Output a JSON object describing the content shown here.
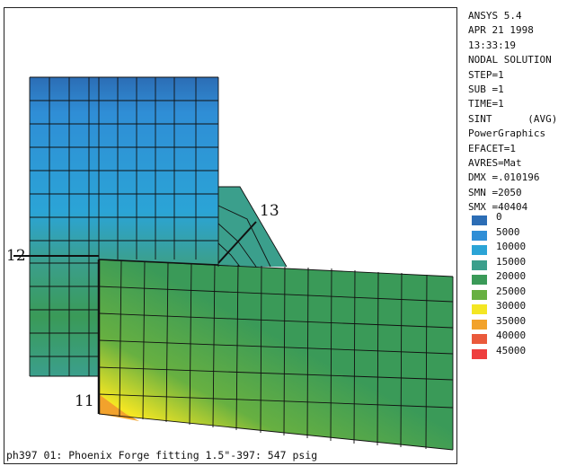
{
  "window": {
    "caption": "ph397 01: Phoenix Forge fitting 1.5\"-397: 547 psig"
  },
  "callouts": {
    "node_12": "12",
    "node_13": "13",
    "node_11": "11"
  },
  "info": {
    "lines": [
      "ANSYS 5.4",
      "APR 21 1998",
      "13:33:19",
      "NODAL SOLUTION",
      "STEP=1",
      "SUB =1",
      "TIME=1",
      "SINT      (AVG)",
      "PowerGraphics",
      "EFACET=1",
      "AVRES=Mat",
      "DMX =.010196",
      "SMN =2050",
      "SMX =40404"
    ]
  },
  "legend": {
    "items": [
      {
        "label": "0",
        "color": "#2c6db5"
      },
      {
        "label": "5000",
        "color": "#2f8ed6"
      },
      {
        "label": "10000",
        "color": "#2ba4d6"
      },
      {
        "label": "15000",
        "color": "#3b9f8c"
      },
      {
        "label": "20000",
        "color": "#3a9a58"
      },
      {
        "label": "25000",
        "color": "#67b041"
      },
      {
        "label": "30000",
        "color": "#f4e623"
      },
      {
        "label": "35000",
        "color": "#f2a22c"
      },
      {
        "label": "40000",
        "color": "#ea5a3b"
      },
      {
        "label": "45000",
        "color": "#ee3e3e"
      }
    ]
  }
}
